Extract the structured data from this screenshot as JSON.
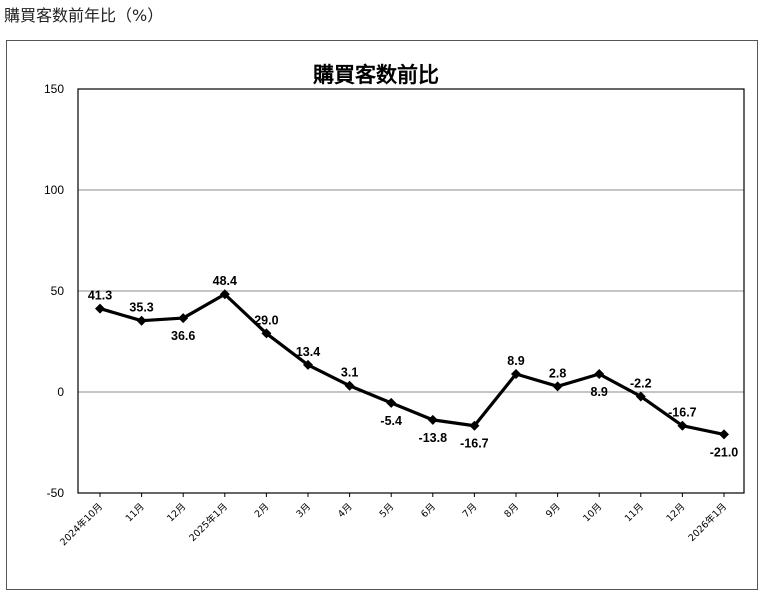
{
  "page": {
    "title": "購買客数前年比（%）"
  },
  "chart_data": {
    "type": "line",
    "title": "購買客数前比",
    "xlabel": "",
    "ylabel": "",
    "ylim": [
      -50,
      150
    ],
    "yticks": [
      150,
      100,
      50,
      0,
      -50
    ],
    "grid": true,
    "legend": "none",
    "categories": [
      "2024年10月",
      "11月",
      "12月",
      "2025年1月",
      "2月",
      "3月",
      "4月",
      "5月",
      "6月",
      "7月",
      "8月",
      "9月",
      "10月",
      "11月",
      "12月",
      "2026年1月"
    ],
    "series": [
      {
        "color": "#000000",
        "values": [
          41.3,
          35.3,
          36.6,
          48.4,
          29.0,
          13.4,
          3.1,
          -5.4,
          -13.8,
          -16.7,
          8.9,
          2.8,
          8.9,
          -2.2,
          -16.7,
          -21.0
        ],
        "labels": [
          "41.3",
          "35.3",
          "36.6",
          "48.4",
          "29.0",
          "13.4",
          "3.1",
          "-5.4",
          "-13.8",
          "-16.7",
          "8.9",
          "2.8",
          "8.9",
          "-2.2",
          "-16.7",
          "-21.0"
        ]
      }
    ]
  }
}
